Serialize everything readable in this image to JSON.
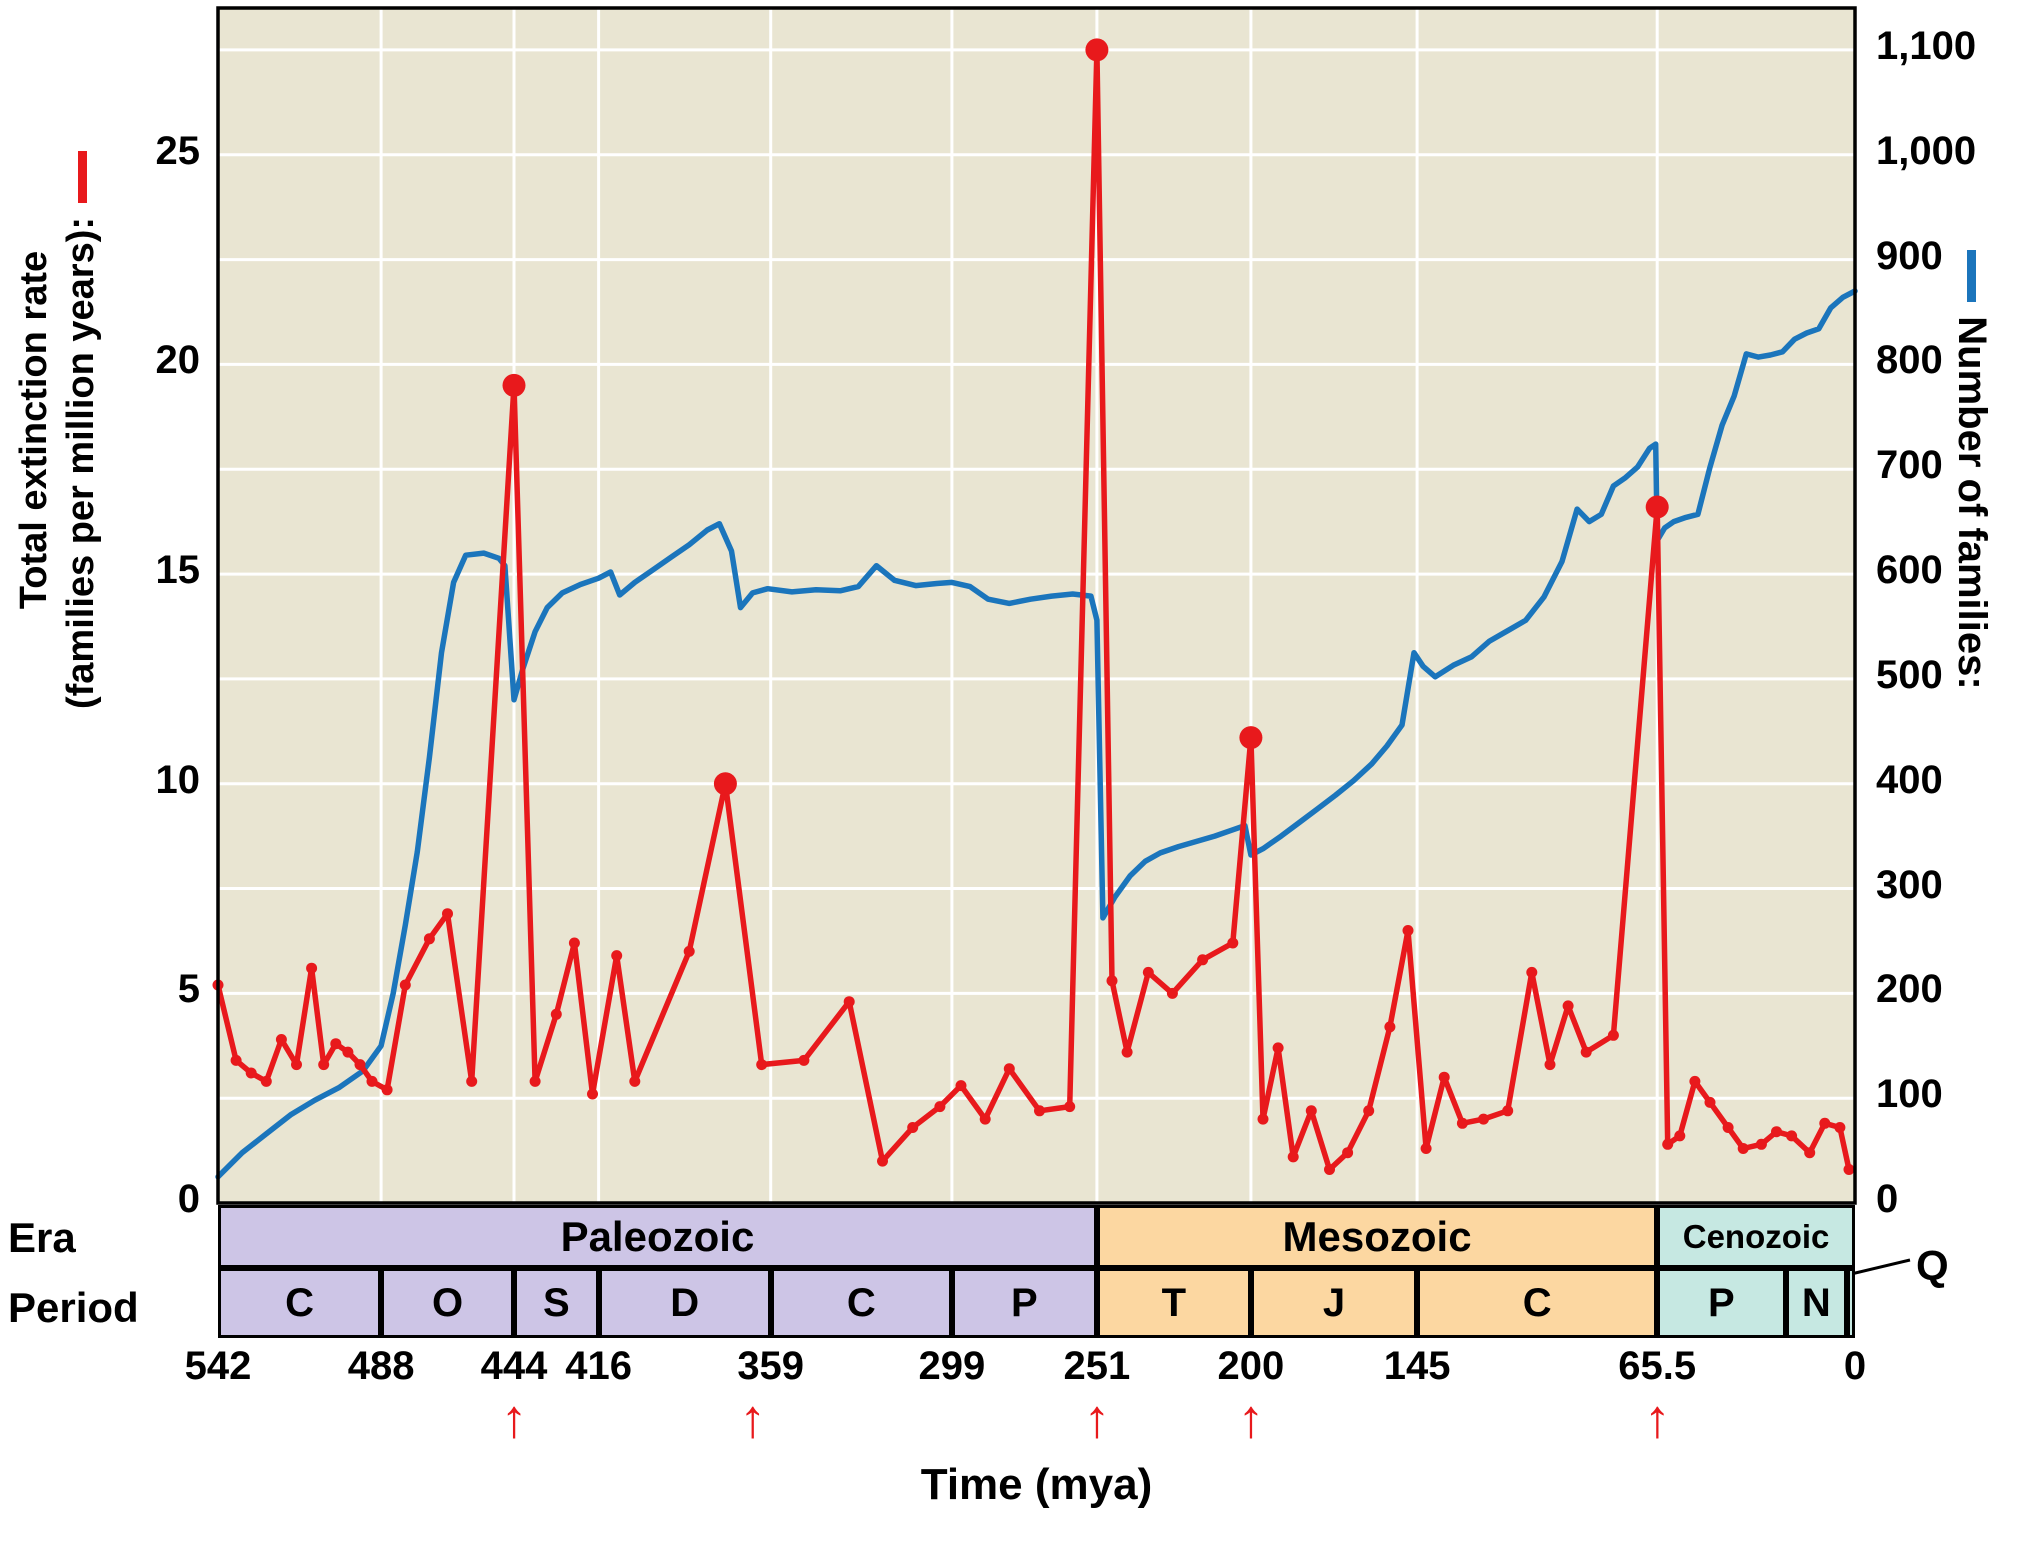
{
  "labels": {
    "left_axis_line1": "Total extinction rate",
    "left_axis_line2": "(families per million years):",
    "right_axis": "Number of families:",
    "x_axis_title": "Time (mya)",
    "era_row": "Era",
    "period_row": "Period",
    "quaternary": "Q"
  },
  "chart_data": {
    "type": "line",
    "x_axis": {
      "label": "Time (mya)",
      "range": [
        542,
        0
      ],
      "tick_values": [
        542,
        488,
        444,
        416,
        359,
        299,
        251,
        200,
        145,
        65.5,
        0
      ],
      "tick_labels": [
        "542",
        "488",
        "444",
        "416",
        "359",
        "299",
        "251",
        "200",
        "145",
        "65.5",
        "0"
      ]
    },
    "left_axis": {
      "label": "Total extinction rate (families per million years):",
      "color": "#e8191c",
      "tick_values": [
        0,
        5,
        10,
        15,
        20,
        25
      ],
      "max": 28.5
    },
    "right_axis": {
      "label": "Number of families:",
      "color": "#1b75bc",
      "tick_values": [
        0,
        100,
        200,
        300,
        400,
        500,
        600,
        700,
        800,
        900,
        1000,
        1100
      ],
      "tick_labels": [
        "0",
        "100",
        "200",
        "300",
        "400",
        "500",
        "600",
        "700",
        "800",
        "900",
        "1,000",
        "1,100"
      ],
      "max": 1140
    },
    "series": [
      {
        "name": "Total extinction rate",
        "axis": "left",
        "color": "#e8191c",
        "points": [
          [
            542,
            5.2
          ],
          [
            536,
            3.4
          ],
          [
            531,
            3.1
          ],
          [
            526,
            2.9
          ],
          [
            521,
            3.9
          ],
          [
            516,
            3.3
          ],
          [
            511,
            5.6
          ],
          [
            507,
            3.3
          ],
          [
            503,
            3.8
          ],
          [
            499,
            3.6
          ],
          [
            495,
            3.3
          ],
          [
            491,
            2.9
          ],
          [
            486,
            2.7
          ],
          [
            480,
            5.2
          ],
          [
            472,
            6.3
          ],
          [
            466,
            6.9
          ],
          [
            458,
            2.9
          ],
          [
            444,
            19.5
          ],
          [
            437,
            2.9
          ],
          [
            430,
            4.5
          ],
          [
            424,
            6.2
          ],
          [
            418,
            2.6
          ],
          [
            410,
            5.9
          ],
          [
            404,
            2.9
          ],
          [
            386,
            6.0
          ],
          [
            374,
            10.0
          ],
          [
            362,
            3.3
          ],
          [
            348,
            3.4
          ],
          [
            333,
            4.8
          ],
          [
            322,
            1.0
          ],
          [
            312,
            1.8
          ],
          [
            303,
            2.3
          ],
          [
            296,
            2.8
          ],
          [
            288,
            2.0
          ],
          [
            280,
            3.2
          ],
          [
            270,
            2.2
          ],
          [
            260,
            2.3
          ],
          [
            251,
            27.5
          ],
          [
            246,
            5.3
          ],
          [
            241,
            3.6
          ],
          [
            234,
            5.5
          ],
          [
            226,
            5.0
          ],
          [
            216,
            5.8
          ],
          [
            206,
            6.2
          ],
          [
            200,
            11.1
          ],
          [
            196,
            2.0
          ],
          [
            191,
            3.7
          ],
          [
            186,
            1.1
          ],
          [
            180,
            2.2
          ],
          [
            174,
            0.8
          ],
          [
            168,
            1.2
          ],
          [
            161,
            2.2
          ],
          [
            154,
            4.2
          ],
          [
            148,
            6.5
          ],
          [
            142,
            1.3
          ],
          [
            136,
            3.0
          ],
          [
            130,
            1.9
          ],
          [
            123,
            2.0
          ],
          [
            115,
            2.2
          ],
          [
            107,
            5.5
          ],
          [
            101,
            3.3
          ],
          [
            95,
            4.7
          ],
          [
            89,
            3.6
          ],
          [
            80,
            4.0
          ],
          [
            65.5,
            16.6
          ],
          [
            62,
            1.4
          ],
          [
            58,
            1.6
          ],
          [
            53,
            2.9
          ],
          [
            48,
            2.4
          ],
          [
            42,
            1.8
          ],
          [
            37,
            1.3
          ],
          [
            31,
            1.4
          ],
          [
            26,
            1.7
          ],
          [
            21,
            1.6
          ],
          [
            15,
            1.2
          ],
          [
            10,
            1.9
          ],
          [
            5,
            1.8
          ],
          [
            2,
            0.8
          ]
        ]
      },
      {
        "name": "Number of families",
        "axis": "right",
        "color": "#1b75bc",
        "points": [
          [
            542,
            25
          ],
          [
            534,
            48
          ],
          [
            526,
            66
          ],
          [
            518,
            84
          ],
          [
            510,
            98
          ],
          [
            502,
            110
          ],
          [
            494,
            126
          ],
          [
            488,
            150
          ],
          [
            484,
            200
          ],
          [
            480,
            265
          ],
          [
            476,
            335
          ],
          [
            472,
            425
          ],
          [
            468,
            525
          ],
          [
            464,
            592
          ],
          [
            460,
            618
          ],
          [
            454,
            620
          ],
          [
            449,
            615
          ],
          [
            447,
            608
          ],
          [
            444,
            480
          ],
          [
            441,
            510
          ],
          [
            437,
            545
          ],
          [
            433,
            568
          ],
          [
            428,
            582
          ],
          [
            422,
            590
          ],
          [
            416,
            596
          ],
          [
            412,
            602
          ],
          [
            409,
            580
          ],
          [
            404,
            592
          ],
          [
            398,
            604
          ],
          [
            392,
            616
          ],
          [
            386,
            628
          ],
          [
            380,
            642
          ],
          [
            376,
            648
          ],
          [
            372,
            622
          ],
          [
            369,
            568
          ],
          [
            365,
            582
          ],
          [
            360,
            586
          ],
          [
            352,
            583
          ],
          [
            344,
            585
          ],
          [
            336,
            584
          ],
          [
            330,
            588
          ],
          [
            324,
            608
          ],
          [
            318,
            594
          ],
          [
            311,
            589
          ],
          [
            304,
            591
          ],
          [
            299,
            592
          ],
          [
            293,
            588
          ],
          [
            287,
            576
          ],
          [
            280,
            572
          ],
          [
            273,
            576
          ],
          [
            266,
            579
          ],
          [
            259,
            581
          ],
          [
            253,
            579
          ],
          [
            251,
            556
          ],
          [
            249,
            272
          ],
          [
            245,
            292
          ],
          [
            240,
            312
          ],
          [
            235,
            326
          ],
          [
            230,
            334
          ],
          [
            224,
            340
          ],
          [
            218,
            345
          ],
          [
            212,
            350
          ],
          [
            206,
            356
          ],
          [
            202,
            360
          ],
          [
            200,
            332
          ],
          [
            196,
            338
          ],
          [
            190,
            350
          ],
          [
            184,
            363
          ],
          [
            178,
            376
          ],
          [
            172,
            389
          ],
          [
            166,
            403
          ],
          [
            160,
            419
          ],
          [
            155,
            436
          ],
          [
            150,
            456
          ],
          [
            146,
            525
          ],
          [
            143,
            512
          ],
          [
            139,
            502
          ],
          [
            133,
            513
          ],
          [
            127,
            521
          ],
          [
            121,
            536
          ],
          [
            115,
            546
          ],
          [
            109,
            556
          ],
          [
            103,
            578
          ],
          [
            97,
            612
          ],
          [
            92,
            662
          ],
          [
            88,
            650
          ],
          [
            84,
            657
          ],
          [
            80,
            684
          ],
          [
            76,
            692
          ],
          [
            72,
            702
          ],
          [
            68,
            720
          ],
          [
            66,
            724
          ],
          [
            65.5,
            632
          ],
          [
            63,
            644
          ],
          [
            60,
            650
          ],
          [
            56,
            654
          ],
          [
            52,
            657
          ],
          [
            48,
            702
          ],
          [
            44,
            742
          ],
          [
            40,
            770
          ],
          [
            36,
            810
          ],
          [
            32,
            807
          ],
          [
            28,
            809
          ],
          [
            24,
            812
          ],
          [
            20,
            824
          ],
          [
            16,
            830
          ],
          [
            12,
            834
          ],
          [
            8,
            854
          ],
          [
            4,
            864
          ],
          [
            0,
            870
          ]
        ]
      }
    ],
    "mass_extinction_peaks": [
      [
        444,
        19.5
      ],
      [
        374,
        10.0
      ],
      [
        251,
        27.5
      ],
      [
        200,
        11.1
      ],
      [
        65.5,
        16.6
      ]
    ],
    "mass_extinction_arrows_mya": [
      444,
      365,
      251,
      200,
      65.5
    ],
    "eras": [
      {
        "name": "Paleozoic",
        "start": 542,
        "end": 251,
        "color": "#cdc5e6"
      },
      {
        "name": "Mesozoic",
        "start": 251,
        "end": 65.5,
        "color": "#fcd7a1"
      },
      {
        "name": "Cenozoic",
        "start": 65.5,
        "end": 0,
        "color": "#c6e8e2"
      }
    ],
    "periods": [
      {
        "label": "C",
        "start": 542,
        "end": 488,
        "era": "Paleozoic"
      },
      {
        "label": "O",
        "start": 488,
        "end": 444,
        "era": "Paleozoic"
      },
      {
        "label": "S",
        "start": 444,
        "end": 416,
        "era": "Paleozoic"
      },
      {
        "label": "D",
        "start": 416,
        "end": 359,
        "era": "Paleozoic"
      },
      {
        "label": "C",
        "start": 359,
        "end": 299,
        "era": "Paleozoic"
      },
      {
        "label": "P",
        "start": 299,
        "end": 251,
        "era": "Paleozoic"
      },
      {
        "label": "T",
        "start": 251,
        "end": 200,
        "era": "Mesozoic"
      },
      {
        "label": "J",
        "start": 200,
        "end": 145,
        "era": "Mesozoic"
      },
      {
        "label": "C",
        "start": 145,
        "end": 65.5,
        "era": "Mesozoic"
      },
      {
        "label": "P",
        "start": 65.5,
        "end": 23,
        "era": "Cenozoic"
      },
      {
        "label": "N",
        "start": 23,
        "end": 2.6,
        "era": "Cenozoic"
      },
      {
        "label": "Q",
        "start": 2.6,
        "end": 0,
        "era": "Cenozoic",
        "label_outside": true
      }
    ],
    "colors": {
      "plot_bg": "#e9e5d2",
      "grid": "#ffffff",
      "border": "#000000",
      "red": "#e8191c",
      "blue": "#1b75bc",
      "text": "#000000"
    }
  }
}
